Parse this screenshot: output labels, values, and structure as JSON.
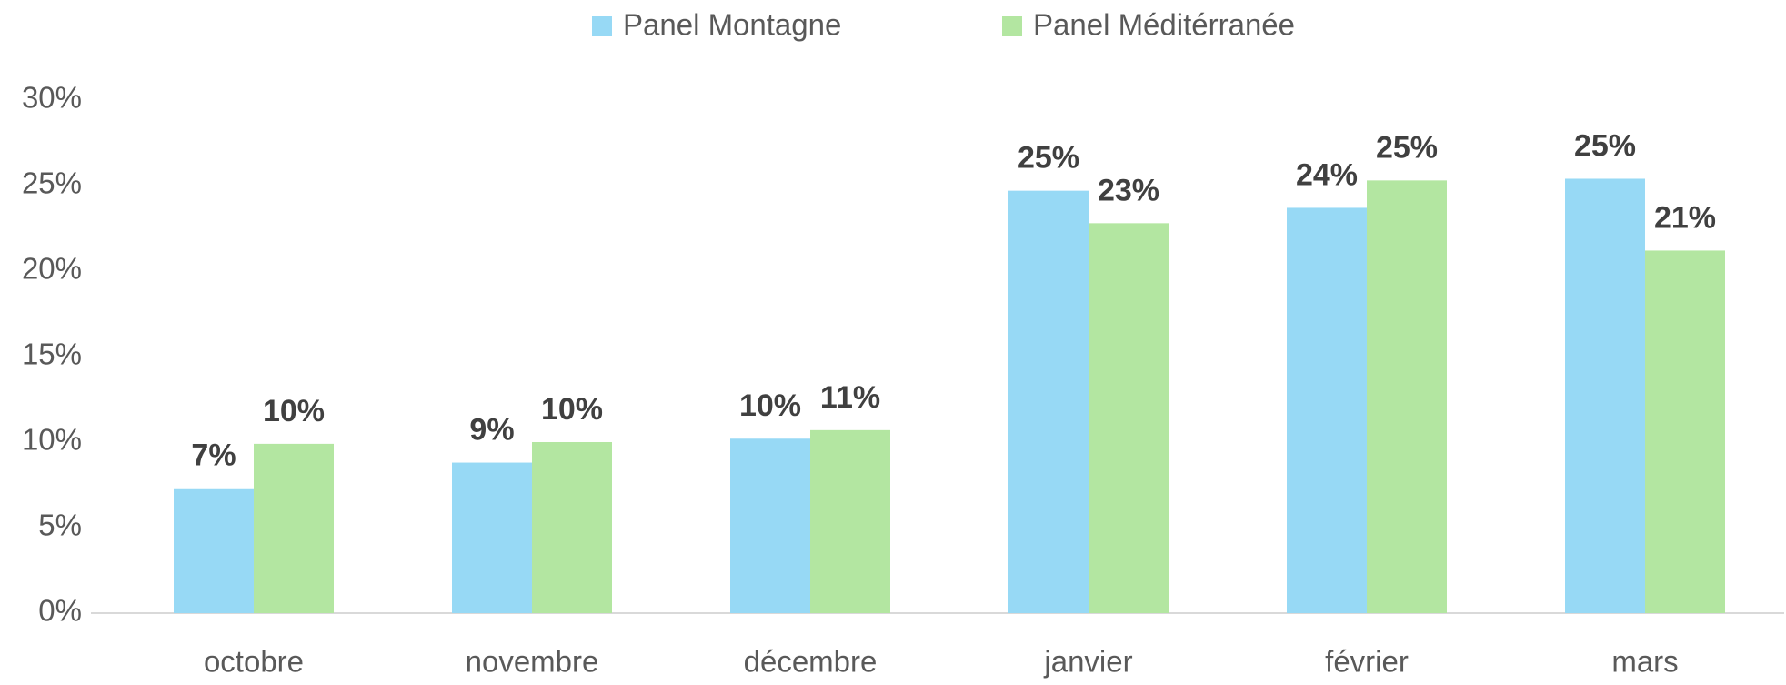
{
  "chart_data": {
    "type": "bar",
    "categories": [
      "octobre",
      "novembre",
      "décembre",
      "janvier",
      "février",
      "mars"
    ],
    "series": [
      {
        "name": "Panel Montagne",
        "color": "#97d9f5",
        "values": [
          7.3,
          8.8,
          10.2,
          24.7,
          23.7,
          25.4
        ],
        "value_labels": [
          "7%",
          "9%",
          "10%",
          "25%",
          "24%",
          "25%"
        ]
      },
      {
        "name": "Panel Méditérranée",
        "color": "#b3e6a1",
        "values": [
          9.9,
          10.0,
          10.7,
          22.8,
          25.3,
          21.2
        ],
        "value_labels": [
          "10%",
          "10%",
          "11%",
          "23%",
          "25%",
          "21%"
        ]
      }
    ],
    "ylim": [
      0,
      30
    ],
    "yticks": [
      {
        "value": 0,
        "label": "0%"
      },
      {
        "value": 5,
        "label": "5%"
      },
      {
        "value": 10,
        "label": "10%"
      },
      {
        "value": 15,
        "label": "15%"
      },
      {
        "value": 20,
        "label": "20%"
      },
      {
        "value": 25,
        "label": "25%"
      },
      {
        "value": 30,
        "label": "30%"
      }
    ],
    "legend": "top"
  }
}
